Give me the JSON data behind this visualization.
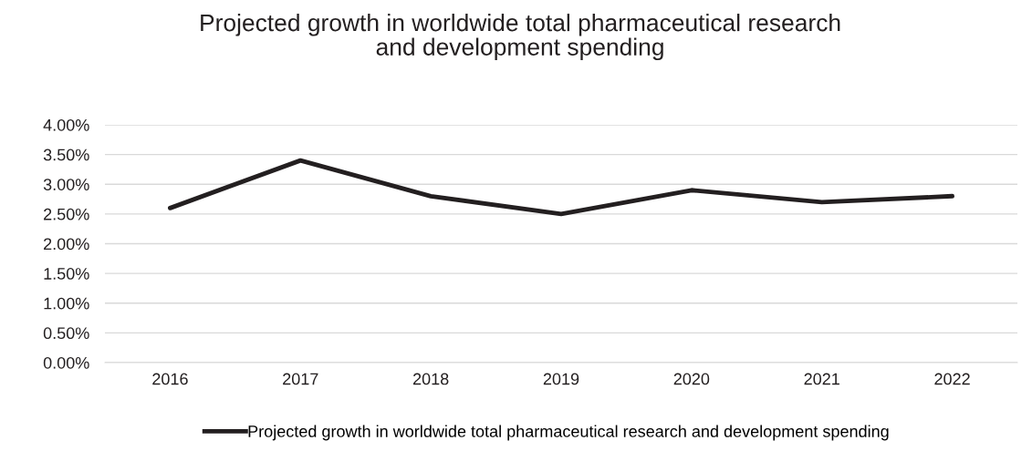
{
  "chart_data": {
    "type": "line",
    "title": "Projected growth in worldwide total pharmaceutical research\nand development spending",
    "categories": [
      "2016",
      "2017",
      "2018",
      "2019",
      "2020",
      "2021",
      "2022"
    ],
    "series": [
      {
        "name": "Projected growth in worldwide total pharmaceutical research and development spending",
        "color": "#231f20",
        "values": [
          2.6,
          3.4,
          2.8,
          2.5,
          2.9,
          2.7,
          2.8
        ]
      }
    ],
    "ylim": [
      0,
      4
    ],
    "yticks": [
      {
        "value": 0,
        "label": "0.00%"
      },
      {
        "value": 0.5,
        "label": "0.50%"
      },
      {
        "value": 1,
        "label": "1.00%"
      },
      {
        "value": 1.5,
        "label": "1.50%"
      },
      {
        "value": 2,
        "label": "2.00%"
      },
      {
        "value": 2.5,
        "label": "2.50%"
      },
      {
        "value": 3,
        "label": "3.00%"
      },
      {
        "value": 3.5,
        "label": "3.50%"
      },
      {
        "value": 4,
        "label": "4.00%"
      }
    ],
    "grid": "y",
    "legend": "bottom",
    "marker": "none",
    "line_style": "solid"
  }
}
